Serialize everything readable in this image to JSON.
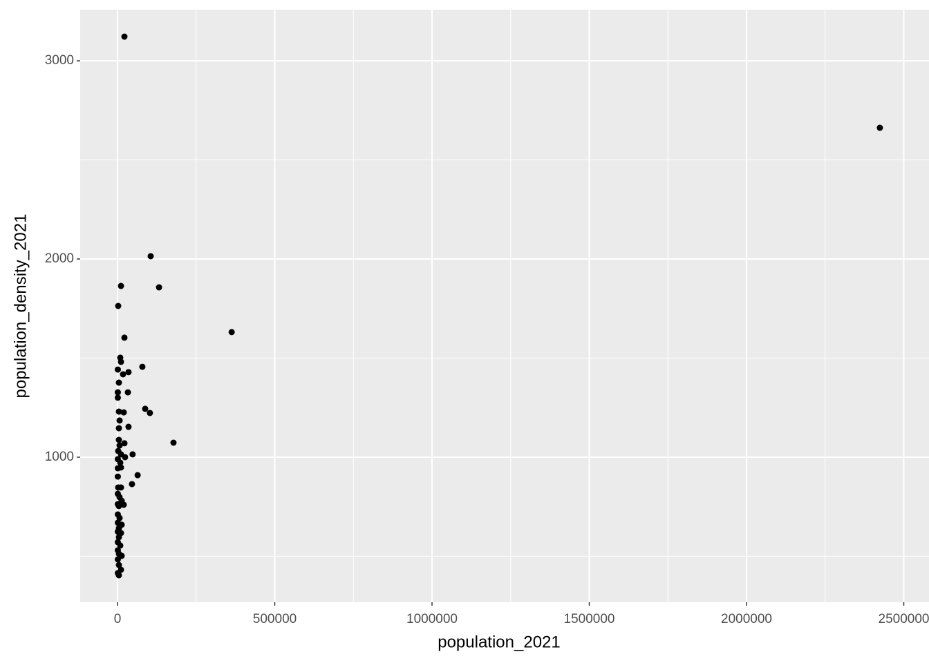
{
  "chart_data": {
    "type": "scatter",
    "x_label": "population_2021",
    "y_label": "population_density_2021",
    "xlim": [
      -118700,
      2580200
    ],
    "ylim": [
      268,
      3258
    ],
    "xticks": [
      0,
      500000,
      1000000,
      1500000,
      2000000,
      2500000
    ],
    "yticks": [
      1000,
      2000,
      3000
    ],
    "x_minor_breaks": [
      250000,
      750000,
      1250000,
      1750000,
      2250000
    ],
    "y_minor_breaks": [
      500,
      1500,
      2500
    ],
    "grid": true,
    "panel_color": "#ebebeb",
    "point_color": "#000000",
    "series": [
      {
        "name": "population_density_2021",
        "color": "#000000",
        "x": [
          22000,
          2424000,
          105500,
          11000,
          132000,
          2200,
          363000,
          22000,
          8800,
          11000,
          79000,
          1000,
          35000,
          17600,
          4400,
          33000,
          1000,
          1000,
          88000,
          103000,
          4400,
          19800,
          6600,
          35000,
          4400,
          178000,
          22000,
          4400,
          6600,
          2200,
          11000,
          48000,
          24000,
          1000,
          8800,
          1000,
          11000,
          64000,
          1000,
          46000,
          2200,
          11000,
          1000,
          6600,
          13200,
          1000,
          19800,
          4400,
          1000,
          6600,
          1000,
          13200,
          4400,
          1000,
          11000,
          4400,
          1000,
          8800,
          1000,
          4400,
          13200,
          1000,
          4400,
          11000,
          1000,
          4400
        ],
        "values": [
          3122,
          2662,
          2014,
          1864,
          1857,
          1763,
          1631,
          1603,
          1502,
          1481,
          1456,
          1442,
          1429,
          1418,
          1376,
          1327,
          1327,
          1300,
          1244,
          1223,
          1230,
          1226,
          1185,
          1153,
          1146,
          1073,
          1070,
          1087,
          1059,
          1031,
          1014,
          1014,
          1000,
          990,
          972,
          944,
          948,
          909,
          902,
          864,
          847,
          847,
          815,
          798,
          780,
          763,
          760,
          753,
          711,
          693,
          669,
          659,
          641,
          624,
          617,
          596,
          571,
          554,
          530,
          512,
          502,
          484,
          456,
          432,
          415,
          404
        ]
      }
    ]
  }
}
